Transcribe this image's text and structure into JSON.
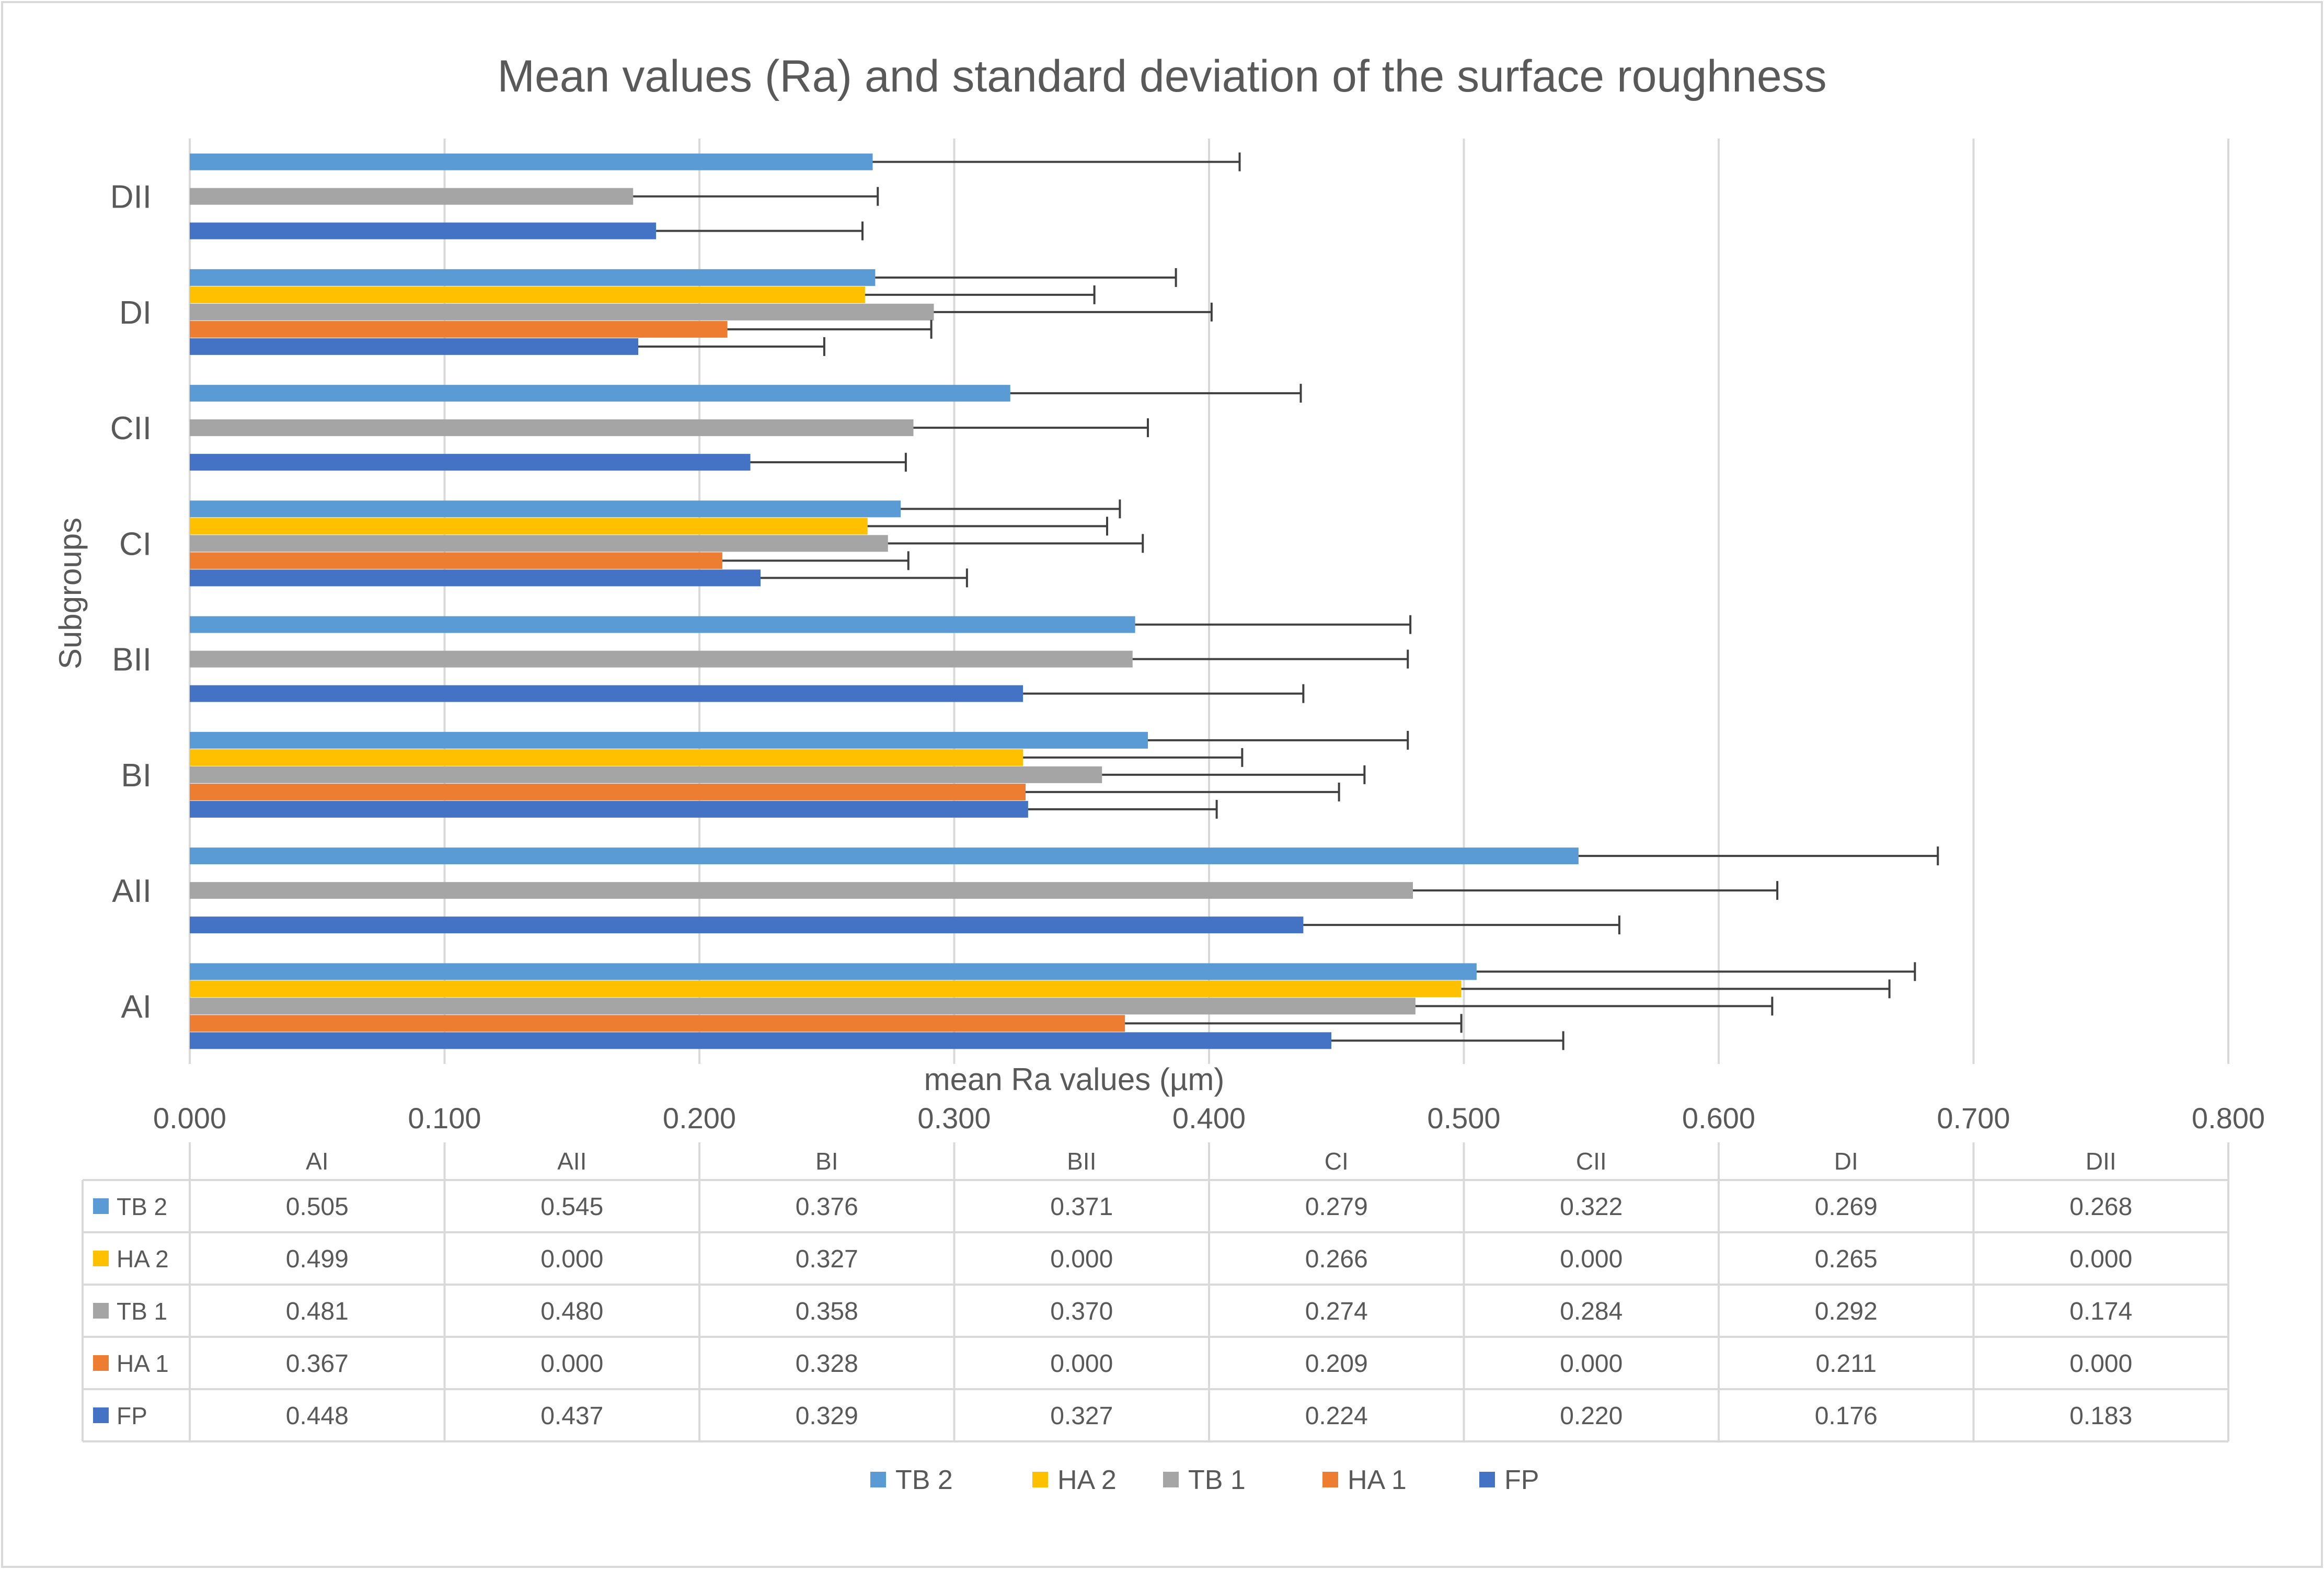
{
  "chart_data": {
    "type": "bar",
    "orientation": "horizontal",
    "title": "Mean values (Ra) and standard deviation of the surface roughness",
    "xlabel": "mean Ra values (µm)",
    "ylabel": "Subgroups",
    "xlim": [
      0,
      0.8
    ],
    "xticks": [
      "0.000",
      "0.100",
      "0.200",
      "0.300",
      "0.400",
      "0.500",
      "0.600",
      "0.700",
      "0.800"
    ],
    "grid": true,
    "legend_position": "bottom",
    "categories": [
      "AI",
      "AII",
      "BI",
      "BII",
      "CI",
      "CII",
      "DI",
      "DII"
    ],
    "series": [
      {
        "name": "TB 2",
        "color": "#5B9BD5",
        "values": [
          0.505,
          0.545,
          0.376,
          0.371,
          0.279,
          0.322,
          0.269,
          0.268
        ],
        "labels": [
          "0.505",
          "0.545",
          "0.376",
          "0.371",
          "0.279",
          "0.322",
          "0.269",
          "0.268"
        ],
        "errors": [
          0.172,
          0.141,
          0.102,
          0.108,
          0.086,
          0.114,
          0.118,
          0.144
        ]
      },
      {
        "name": "HA 2",
        "color": "#FFC000",
        "values": [
          0.499,
          0.0,
          0.327,
          0.0,
          0.266,
          0.0,
          0.265,
          0.0
        ],
        "labels": [
          "0.499",
          "0.000",
          "0.327",
          "0.000",
          "0.266",
          "0.000",
          "0.265",
          "0.000"
        ],
        "errors": [
          0.168,
          null,
          0.086,
          null,
          0.094,
          null,
          0.09,
          null
        ]
      },
      {
        "name": "TB 1",
        "color": "#A5A5A5",
        "values": [
          0.481,
          0.48,
          0.358,
          0.37,
          0.274,
          0.284,
          0.292,
          0.174
        ],
        "labels": [
          "0.481",
          "0.480",
          "0.358",
          "0.370",
          "0.274",
          "0.284",
          "0.292",
          "0.174"
        ],
        "errors": [
          0.14,
          0.143,
          0.103,
          0.108,
          0.1,
          0.092,
          0.109,
          0.096
        ]
      },
      {
        "name": "HA 1",
        "color": "#ED7D31",
        "values": [
          0.367,
          0.0,
          0.328,
          0.0,
          0.209,
          0.0,
          0.211,
          0.0
        ],
        "labels": [
          "0.367",
          "0.000",
          "0.328",
          "0.000",
          "0.209",
          "0.000",
          "0.211",
          "0.000"
        ],
        "errors": [
          0.132,
          null,
          0.123,
          null,
          0.073,
          null,
          0.08,
          null
        ]
      },
      {
        "name": "FP",
        "color": "#4472C4",
        "values": [
          0.448,
          0.437,
          0.329,
          0.327,
          0.224,
          0.22,
          0.176,
          0.183
        ],
        "labels": [
          "0.448",
          "0.437",
          "0.329",
          "0.327",
          "0.224",
          "0.220",
          "0.176",
          "0.183"
        ],
        "errors": [
          0.091,
          0.124,
          0.074,
          0.11,
          0.081,
          0.061,
          0.073,
          0.081
        ]
      }
    ]
  }
}
